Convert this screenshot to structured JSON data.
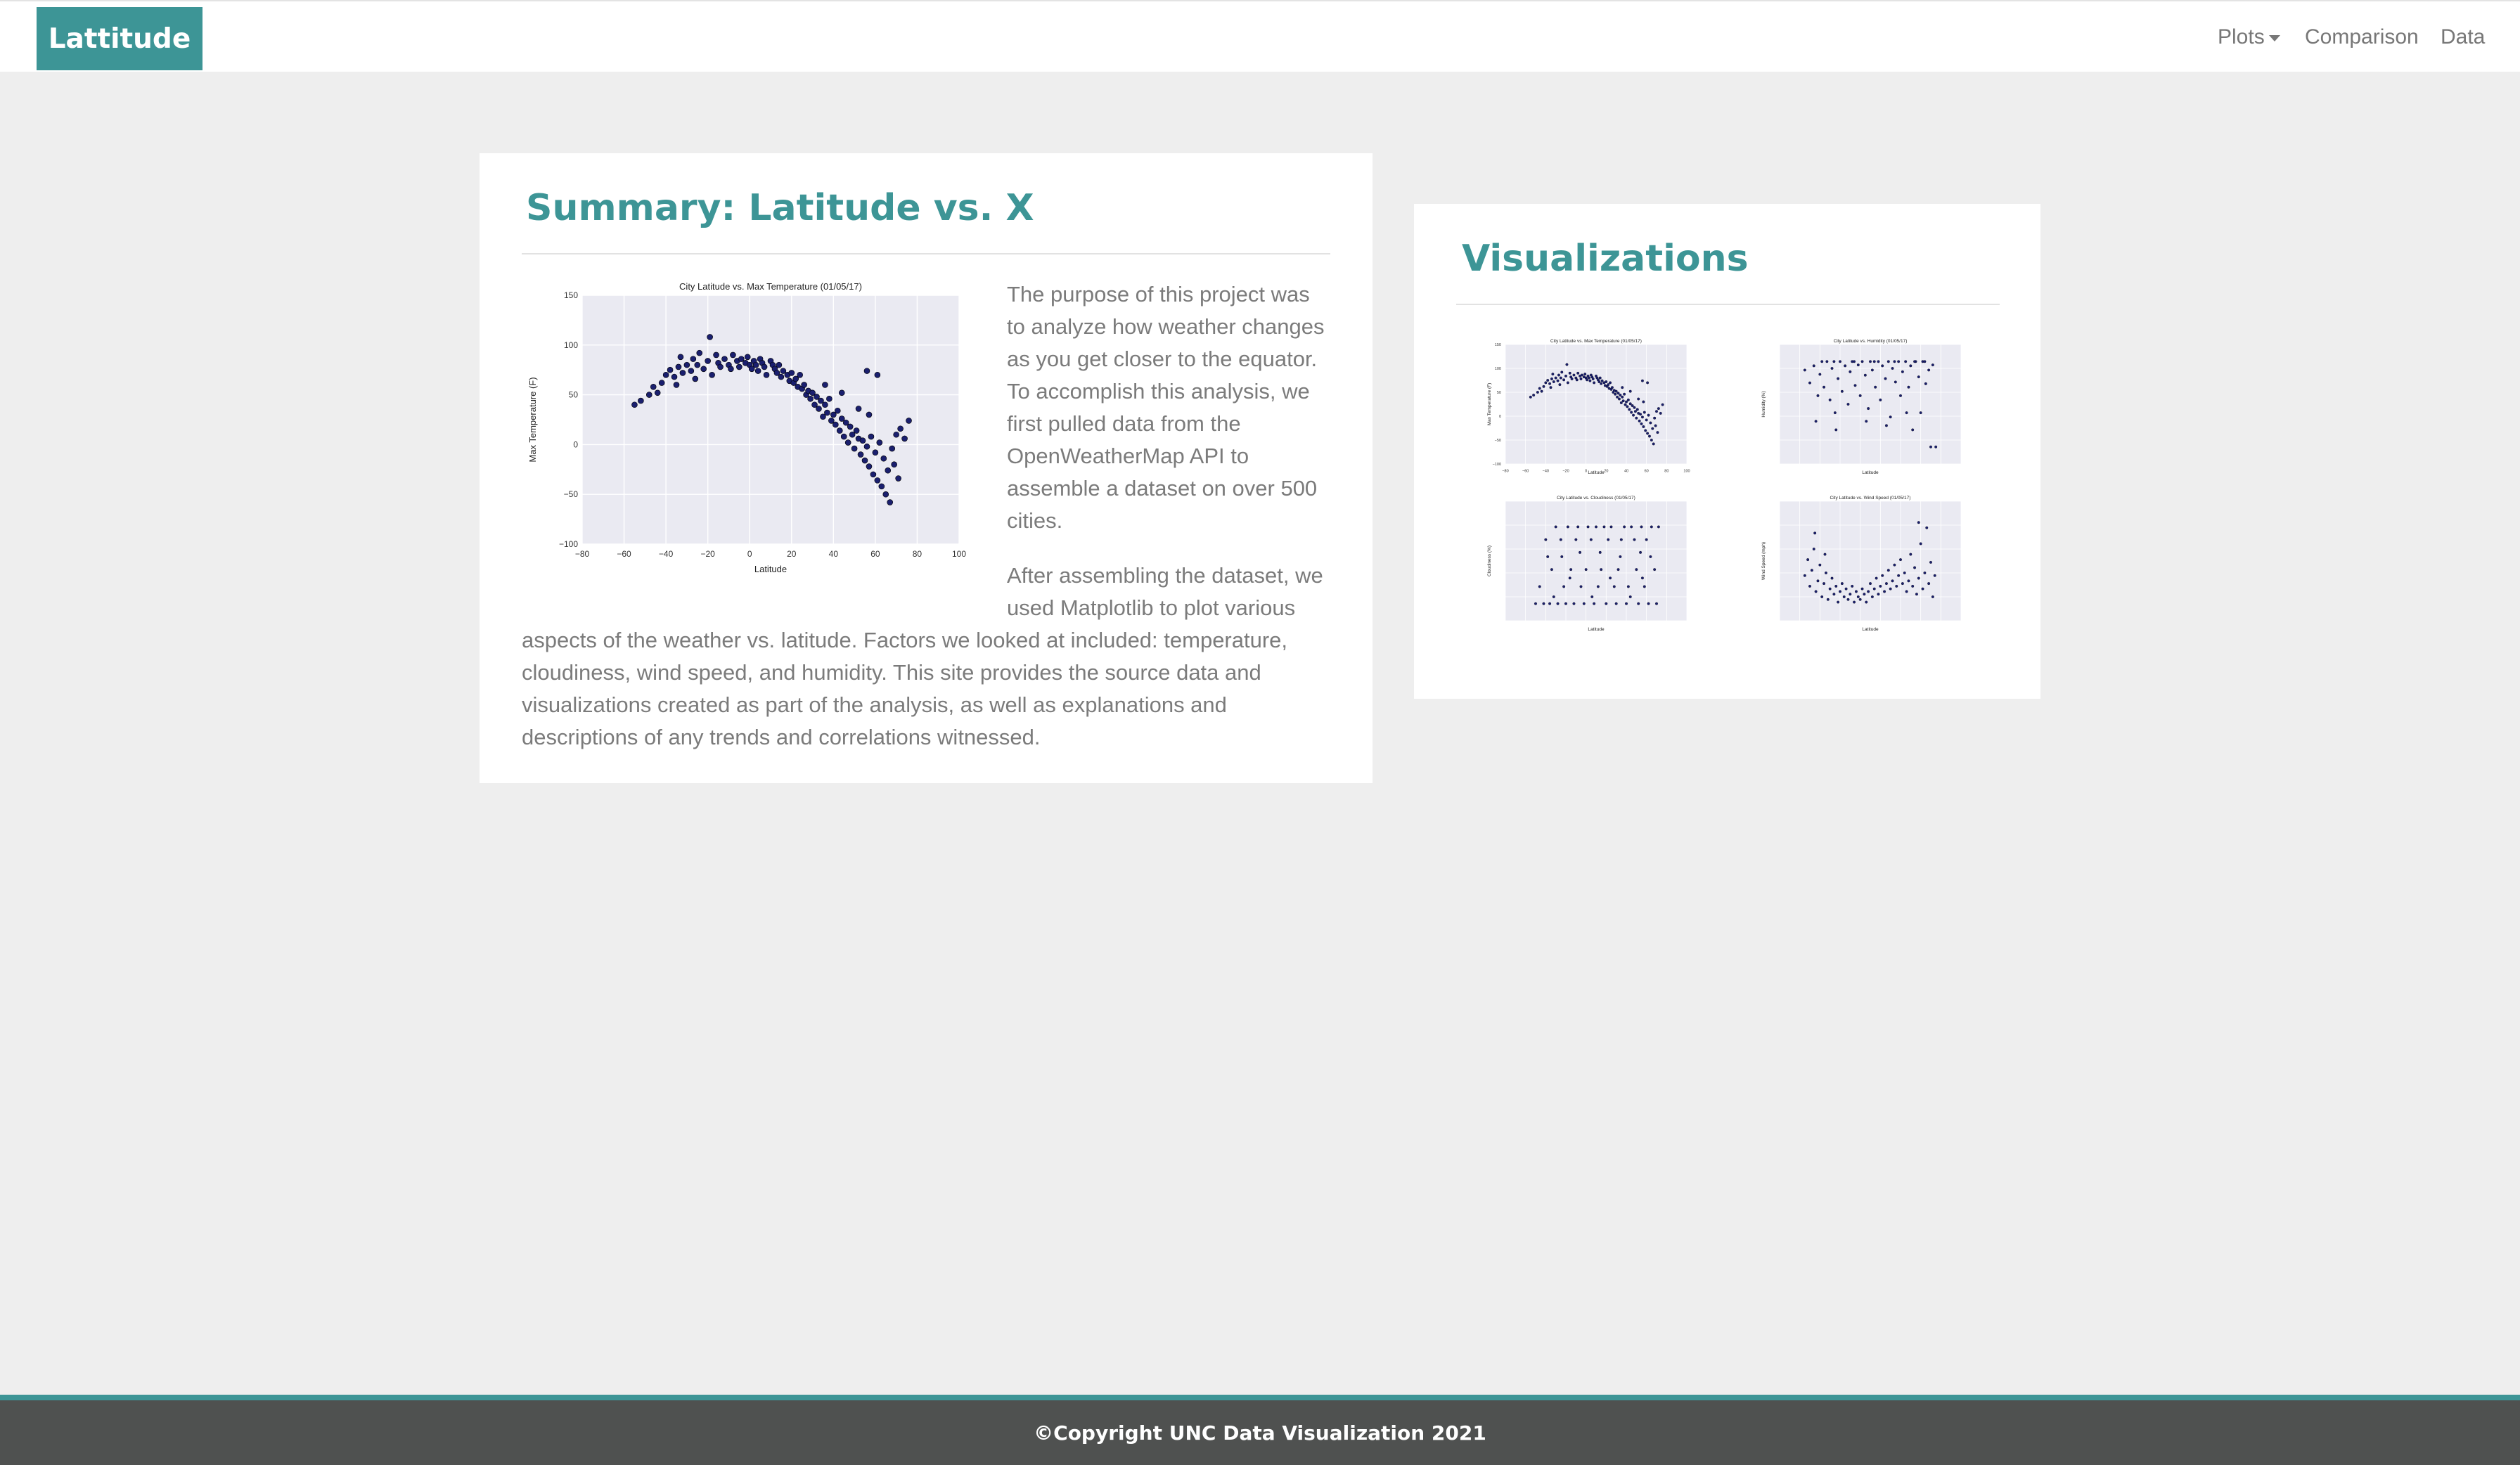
{
  "navbar": {
    "brand": "Lattitude",
    "links": {
      "plots": "Plots",
      "comparison": "Comparison",
      "data": "Data"
    }
  },
  "summary": {
    "title": "Summary: Latitude vs. X",
    "paragraph1": "The purpose of this project was to analyze how weather changes as you get closer to the equator. To accomplish this analysis, we first pulled data from the OpenWeatherMap API to assemble a dataset on over 500 cities.",
    "paragraph2": "After assembling the dataset, we used Matplotlib to plot various aspects of the weather vs. latitude. Factors we looked at included: temperature, cloudiness, wind speed, and humidity. This site provides the source data and visualizations created as part of the analysis, as well as explanations and descriptions of any trends and correlations witnessed."
  },
  "visualizations": {
    "title": "Visualizations"
  },
  "footer": {
    "text": "©Copyright UNC Data Visualization 2021"
  },
  "colors": {
    "accent": "#3d9596",
    "footer_bg": "#4f5150",
    "page_bg": "#eeeeee",
    "point": "#1a1f6e"
  },
  "chart_data": [
    {
      "id": "temp",
      "type": "scatter",
      "title": "City Latitude vs. Max Temperature (01/05/17)",
      "xlabel": "Latitude",
      "ylabel": "Max Temperature (F)",
      "xlim": [
        -80,
        100
      ],
      "ylim": [
        -100,
        150
      ],
      "xticks": [
        "−80",
        "−60",
        "−40",
        "−20",
        "0",
        "20",
        "40",
        "60",
        "80",
        "100"
      ],
      "yticks": [
        "−100",
        "−50",
        "0",
        "50",
        "100",
        "150"
      ],
      "grid": true,
      "points": [
        [
          -55,
          40
        ],
        [
          -52,
          44
        ],
        [
          -48,
          50
        ],
        [
          -46,
          58
        ],
        [
          -44,
          52
        ],
        [
          -42,
          62
        ],
        [
          -40,
          70
        ],
        [
          -38,
          75
        ],
        [
          -36,
          68
        ],
        [
          -34,
          78
        ],
        [
          -33,
          88
        ],
        [
          -32,
          72
        ],
        [
          -30,
          80
        ],
        [
          -28,
          74
        ],
        [
          -27,
          86
        ],
        [
          -25,
          80
        ],
        [
          -24,
          92
        ],
        [
          -22,
          76
        ],
        [
          -20,
          84
        ],
        [
          -19,
          108
        ],
        [
          -18,
          70
        ],
        [
          -16,
          90
        ],
        [
          -15,
          82
        ],
        [
          -14,
          78
        ],
        [
          -12,
          86
        ],
        [
          -10,
          80
        ],
        [
          -9,
          76
        ],
        [
          -8,
          90
        ],
        [
          -6,
          84
        ],
        [
          -5,
          78
        ],
        [
          -4,
          86
        ],
        [
          -2,
          82
        ],
        [
          -1,
          88
        ],
        [
          0,
          80
        ],
        [
          1,
          76
        ],
        [
          2,
          84
        ],
        [
          3,
          80
        ],
        [
          4,
          74
        ],
        [
          5,
          86
        ],
        [
          6,
          82
        ],
        [
          7,
          78
        ],
        [
          8,
          70
        ],
        [
          10,
          84
        ],
        [
          11,
          80
        ],
        [
          12,
          76
        ],
        [
          13,
          72
        ],
        [
          14,
          80
        ],
        [
          15,
          68
        ],
        [
          16,
          74
        ],
        [
          18,
          70
        ],
        [
          19,
          64
        ],
        [
          20,
          72
        ],
        [
          21,
          62
        ],
        [
          22,
          66
        ],
        [
          23,
          58
        ],
        [
          24,
          70
        ],
        [
          25,
          56
        ],
        [
          26,
          60
        ],
        [
          27,
          50
        ],
        [
          28,
          54
        ],
        [
          29,
          46
        ],
        [
          30,
          52
        ],
        [
          31,
          40
        ],
        [
          32,
          48
        ],
        [
          33,
          36
        ],
        [
          34,
          44
        ],
        [
          35,
          28
        ],
        [
          36,
          40
        ],
        [
          37,
          32
        ],
        [
          38,
          46
        ],
        [
          39,
          24
        ],
        [
          40,
          30
        ],
        [
          41,
          20
        ],
        [
          42,
          34
        ],
        [
          43,
          14
        ],
        [
          44,
          26
        ],
        [
          45,
          8
        ],
        [
          46,
          22
        ],
        [
          47,
          2
        ],
        [
          48,
          18
        ],
        [
          49,
          10
        ],
        [
          50,
          -4
        ],
        [
          51,
          14
        ],
        [
          52,
          6
        ],
        [
          53,
          -10
        ],
        [
          54,
          4
        ],
        [
          55,
          -16
        ],
        [
          56,
          -2
        ],
        [
          57,
          -22
        ],
        [
          58,
          8
        ],
        [
          59,
          -30
        ],
        [
          60,
          -8
        ],
        [
          61,
          -36
        ],
        [
          62,
          2
        ],
        [
          63,
          -42
        ],
        [
          64,
          -14
        ],
        [
          65,
          -50
        ],
        [
          66,
          -26
        ],
        [
          67,
          -58
        ],
        [
          68,
          -4
        ],
        [
          69,
          -20
        ],
        [
          70,
          10
        ],
        [
          71,
          -34
        ],
        [
          72,
          16
        ],
        [
          74,
          6
        ],
        [
          76,
          24
        ],
        [
          56,
          74
        ],
        [
          61,
          70
        ],
        [
          -35,
          60
        ],
        [
          -26,
          66
        ],
        [
          36,
          60
        ],
        [
          44,
          52
        ],
        [
          52,
          36
        ],
        [
          57,
          30
        ]
      ]
    },
    {
      "id": "humidity",
      "type": "scatter",
      "title": "City Latitude vs. Humidity (01/05/17)",
      "xlabel": "Latitude",
      "ylabel": "Humidity (%)",
      "xlim": [
        -80,
        100
      ],
      "ylim": [
        -20,
        120
      ],
      "xticks": [],
      "yticks": [],
      "grid": true,
      "points": [
        [
          -55,
          90
        ],
        [
          -50,
          75
        ],
        [
          -46,
          95
        ],
        [
          -42,
          60
        ],
        [
          -40,
          85
        ],
        [
          -36,
          70
        ],
        [
          -33,
          100
        ],
        [
          -30,
          55
        ],
        [
          -28,
          92
        ],
        [
          -25,
          40
        ],
        [
          -22,
          80
        ],
        [
          -20,
          100
        ],
        [
          -18,
          65
        ],
        [
          -15,
          95
        ],
        [
          -12,
          50
        ],
        [
          -10,
          88
        ],
        [
          -8,
          100
        ],
        [
          -5,
          72
        ],
        [
          -2,
          96
        ],
        [
          0,
          60
        ],
        [
          2,
          100
        ],
        [
          5,
          84
        ],
        [
          8,
          45
        ],
        [
          10,
          100
        ],
        [
          12,
          90
        ],
        [
          15,
          70
        ],
        [
          18,
          100
        ],
        [
          20,
          55
        ],
        [
          22,
          95
        ],
        [
          25,
          80
        ],
        [
          28,
          100
        ],
        [
          30,
          35
        ],
        [
          32,
          92
        ],
        [
          35,
          76
        ],
        [
          38,
          100
        ],
        [
          40,
          60
        ],
        [
          42,
          88
        ],
        [
          45,
          100
        ],
        [
          48,
          70
        ],
        [
          50,
          95
        ],
        [
          52,
          20
        ],
        [
          55,
          100
        ],
        [
          58,
          82
        ],
        [
          60,
          40
        ],
        [
          62,
          100
        ],
        [
          65,
          74
        ],
        [
          68,
          90
        ],
        [
          70,
          0
        ],
        [
          72,
          96
        ],
        [
          75,
          0
        ],
        [
          -38,
          100
        ],
        [
          -26,
          100
        ],
        [
          -6,
          100
        ],
        [
          14,
          100
        ],
        [
          34,
          100
        ],
        [
          54,
          100
        ],
        [
          64,
          100
        ],
        [
          -44,
          30
        ],
        [
          -24,
          20
        ],
        [
          6,
          30
        ],
        [
          26,
          25
        ],
        [
          46,
          40
        ]
      ]
    },
    {
      "id": "cloudiness",
      "type": "scatter",
      "title": "City Latitude vs. Cloudiness (01/05/17)",
      "xlabel": "Latitude",
      "ylabel": "Cloudiness (%)",
      "xlim": [
        -80,
        100
      ],
      "ylim": [
        -20,
        120
      ],
      "xticks": [],
      "yticks": [],
      "grid": true,
      "points": [
        [
          -50,
          0
        ],
        [
          -46,
          20
        ],
        [
          -42,
          0
        ],
        [
          -40,
          75
        ],
        [
          -36,
          0
        ],
        [
          -34,
          40
        ],
        [
          -30,
          90
        ],
        [
          -28,
          0
        ],
        [
          -25,
          75
        ],
        [
          -22,
          20
        ],
        [
          -20,
          0
        ],
        [
          -18,
          90
        ],
        [
          -15,
          40
        ],
        [
          -12,
          0
        ],
        [
          -10,
          75
        ],
        [
          -8,
          90
        ],
        [
          -5,
          20
        ],
        [
          -2,
          0
        ],
        [
          0,
          40
        ],
        [
          2,
          90
        ],
        [
          5,
          75
        ],
        [
          8,
          0
        ],
        [
          10,
          90
        ],
        [
          12,
          20
        ],
        [
          15,
          40
        ],
        [
          18,
          90
        ],
        [
          20,
          0
        ],
        [
          22,
          75
        ],
        [
          25,
          90
        ],
        [
          28,
          20
        ],
        [
          30,
          0
        ],
        [
          32,
          40
        ],
        [
          35,
          75
        ],
        [
          38,
          90
        ],
        [
          40,
          0
        ],
        [
          42,
          20
        ],
        [
          45,
          90
        ],
        [
          48,
          75
        ],
        [
          50,
          40
        ],
        [
          52,
          0
        ],
        [
          55,
          90
        ],
        [
          58,
          20
        ],
        [
          60,
          75
        ],
        [
          62,
          0
        ],
        [
          65,
          90
        ],
        [
          68,
          40
        ],
        [
          70,
          0
        ],
        [
          72,
          90
        ],
        [
          -38,
          55
        ],
        [
          -24,
          55
        ],
        [
          -6,
          60
        ],
        [
          14,
          60
        ],
        [
          34,
          55
        ],
        [
          54,
          60
        ],
        [
          64,
          55
        ],
        [
          -32,
          8
        ],
        [
          6,
          8
        ],
        [
          44,
          8
        ],
        [
          -16,
          30
        ],
        [
          24,
          30
        ],
        [
          56,
          30
        ]
      ]
    },
    {
      "id": "wind",
      "type": "scatter",
      "title": "City Latitude vs. Wind Speed (01/05/17)",
      "xlabel": "Latitude",
      "ylabel": "Wind Speed (mph)",
      "xlim": [
        -80,
        100
      ],
      "ylim": [
        -5,
        40
      ],
      "xticks": [],
      "yticks": [],
      "grid": true,
      "points": [
        [
          -55,
          12
        ],
        [
          -52,
          18
        ],
        [
          -50,
          8
        ],
        [
          -48,
          14
        ],
        [
          -46,
          22
        ],
        [
          -44,
          6
        ],
        [
          -42,
          10
        ],
        [
          -40,
          16
        ],
        [
          -38,
          4
        ],
        [
          -36,
          9
        ],
        [
          -34,
          13
        ],
        [
          -32,
          3
        ],
        [
          -30,
          7
        ],
        [
          -28,
          11
        ],
        [
          -26,
          5
        ],
        [
          -24,
          8
        ],
        [
          -22,
          2
        ],
        [
          -20,
          6
        ],
        [
          -18,
          9
        ],
        [
          -16,
          4
        ],
        [
          -14,
          7
        ],
        [
          -12,
          3
        ],
        [
          -10,
          5
        ],
        [
          -8,
          8
        ],
        [
          -6,
          2
        ],
        [
          -4,
          6
        ],
        [
          -2,
          4
        ],
        [
          0,
          3
        ],
        [
          2,
          7
        ],
        [
          4,
          5
        ],
        [
          6,
          2
        ],
        [
          8,
          6
        ],
        [
          10,
          9
        ],
        [
          12,
          4
        ],
        [
          14,
          7
        ],
        [
          16,
          11
        ],
        [
          18,
          5
        ],
        [
          20,
          8
        ],
        [
          22,
          12
        ],
        [
          24,
          6
        ],
        [
          26,
          9
        ],
        [
          28,
          14
        ],
        [
          30,
          7
        ],
        [
          32,
          10
        ],
        [
          34,
          16
        ],
        [
          36,
          8
        ],
        [
          38,
          12
        ],
        [
          40,
          18
        ],
        [
          42,
          9
        ],
        [
          44,
          13
        ],
        [
          46,
          6
        ],
        [
          48,
          10
        ],
        [
          50,
          20
        ],
        [
          52,
          8
        ],
        [
          54,
          15
        ],
        [
          56,
          5
        ],
        [
          58,
          11
        ],
        [
          60,
          24
        ],
        [
          62,
          7
        ],
        [
          64,
          13
        ],
        [
          66,
          30
        ],
        [
          68,
          9
        ],
        [
          70,
          17
        ],
        [
          72,
          4
        ],
        [
          74,
          12
        ],
        [
          -45,
          28
        ],
        [
          -35,
          20
        ],
        [
          58,
          32
        ]
      ]
    }
  ]
}
